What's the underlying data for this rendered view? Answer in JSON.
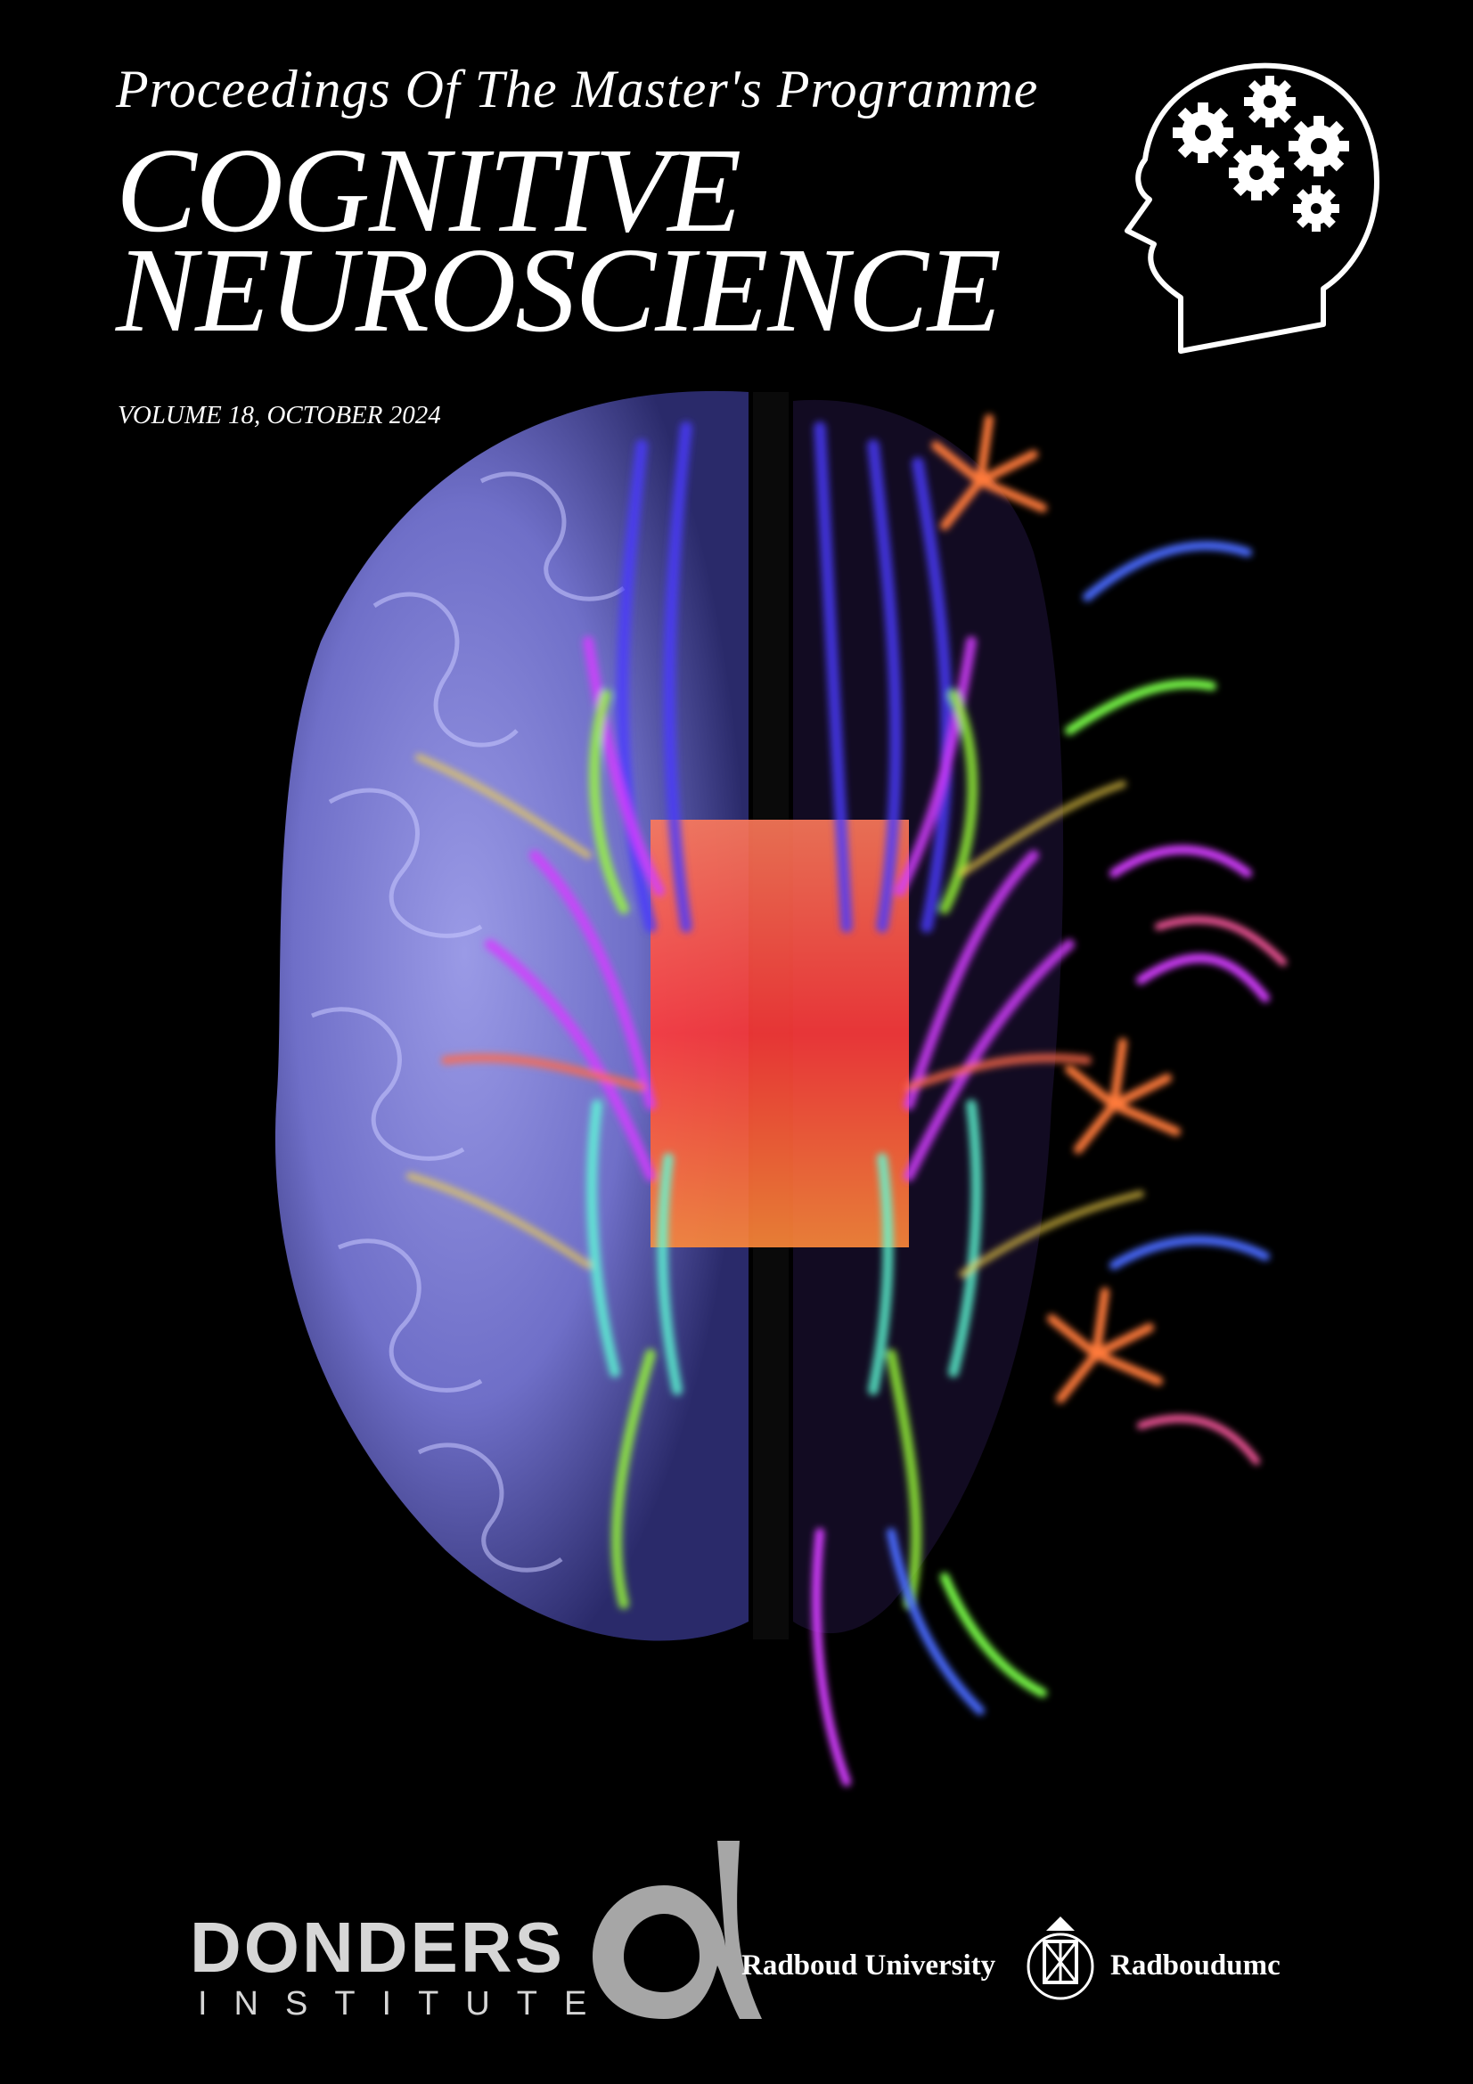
{
  "cover": {
    "subtitle": "Proceedings Of The Master's Programme",
    "title_line1": "COGNITIVE",
    "title_line2": "NEUROSCIENCE",
    "volume": "VOLUME 18, OCTOBER 2024"
  },
  "logos": {
    "donders_word": "DONDERS",
    "donders_sub": "INSTITUTE",
    "radboud_university": "Radboud University",
    "radboudumc": "Radboudumc"
  },
  "icons": {
    "head_gears": "head-with-gears-icon",
    "brain_artwork": "brain-tractography-artwork",
    "alpha_logo": "donders-alpha-logo",
    "seal": "radboud-seal-icon"
  },
  "colors": {
    "background": "#000000",
    "brain_base": "#6f6fc8",
    "fiber_blue": "#4a3cff",
    "fiber_magenta": "#d43cff",
    "fiber_red": "#ff4a3a",
    "fiber_green": "#9cff3a",
    "fiber_cyan": "#5fffd8",
    "donders_gray": "#d6d6d6"
  }
}
